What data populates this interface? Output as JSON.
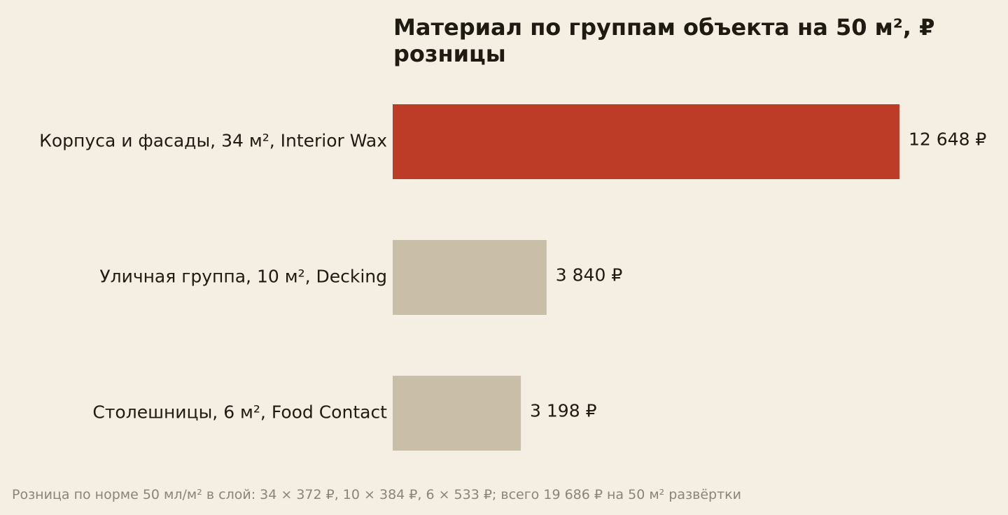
{
  "chart_data": {
    "type": "barh",
    "title": "Материал по группам объекта на 50 м², ₽ розницы",
    "categories": [
      "Корпуса и фасады, 34 м², Interior Wax",
      "Уличная группа, 10 м², Decking",
      "Столешницы, 6 м², Food Contact"
    ],
    "values": [
      12648,
      3840,
      3198
    ],
    "value_labels": [
      "12 648 ₽",
      "3 840 ₽",
      "3 198 ₽"
    ],
    "colors": [
      "#bc3c27",
      "#c9bfa8",
      "#c9bfa8"
    ],
    "note": "Розница по норме 50 мл/м² в слой: 34 × 372 ₽, 10 × 384 ₽, 6 × 533 ₽; всего 19 686 ₽ на 50 м² развёртки"
  }
}
